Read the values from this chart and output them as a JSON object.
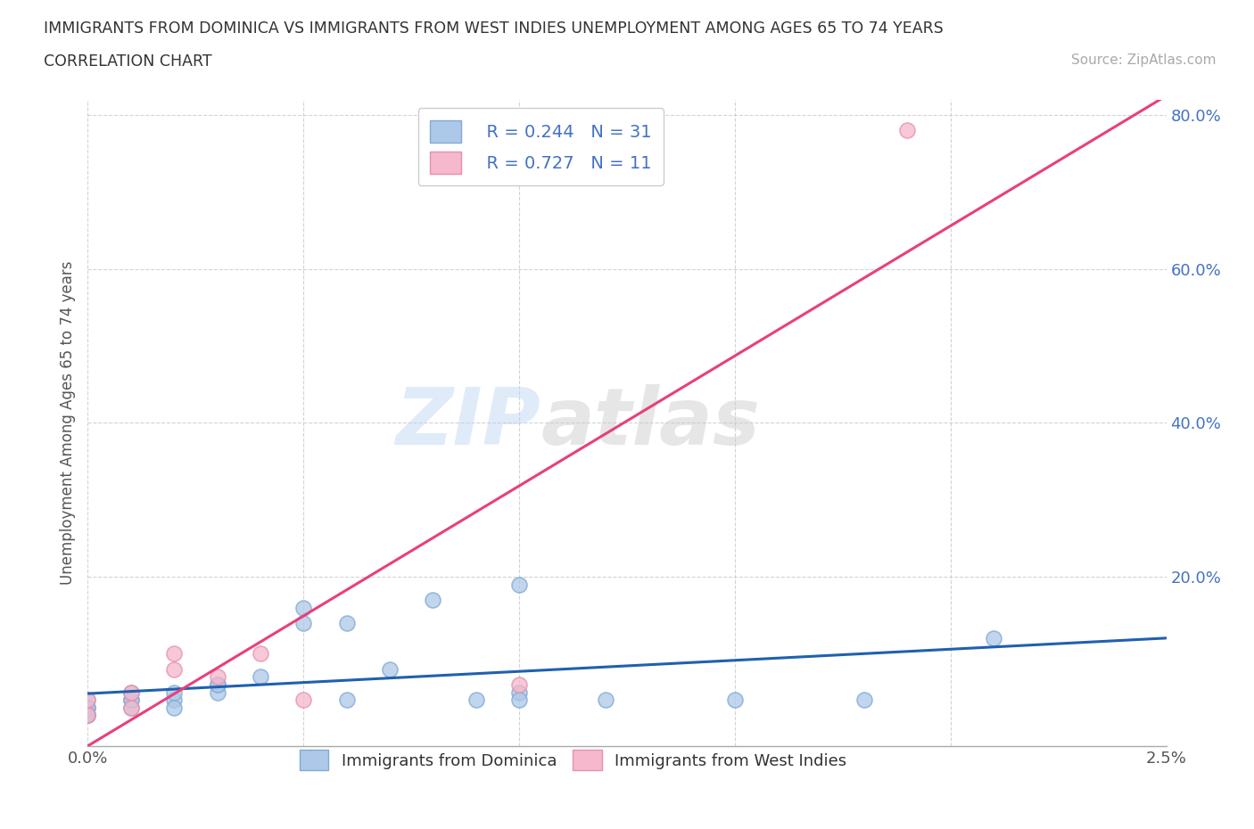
{
  "title_line1": "IMMIGRANTS FROM DOMINICA VS IMMIGRANTS FROM WEST INDIES UNEMPLOYMENT AMONG AGES 65 TO 74 YEARS",
  "title_line2": "CORRELATION CHART",
  "source_text": "Source: ZipAtlas.com",
  "ylabel": "Unemployment Among Ages 65 to 74 years",
  "xlim": [
    0.0,
    0.025
  ],
  "ylim": [
    -0.02,
    0.82
  ],
  "xticks": [
    0.0,
    0.005,
    0.01,
    0.015,
    0.02,
    0.025
  ],
  "xticklabels": [
    "0.0%",
    "",
    "",
    "",
    "",
    "2.5%"
  ],
  "yticks": [
    0.2,
    0.4,
    0.6,
    0.8
  ],
  "yticklabels": [
    "20.0%",
    "40.0%",
    "60.0%",
    "80.0%"
  ],
  "watermark_zip": "ZIP",
  "watermark_atlas": "atlas",
  "dominica_color": "#adc8e8",
  "dominica_edge": "#80aad4",
  "westindies_color": "#f5b8cc",
  "westindies_edge": "#e890aa",
  "dominica_line_color": "#2060b0",
  "westindies_line_color": "#e8407a",
  "R_dominica": 0.244,
  "N_dominica": 31,
  "R_westindies": 0.727,
  "N_westindies": 11,
  "dominica_x": [
    0.0,
    0.0,
    0.0,
    0.0,
    0.0,
    0.0,
    0.001,
    0.001,
    0.001,
    0.001,
    0.002,
    0.002,
    0.002,
    0.003,
    0.003,
    0.003,
    0.004,
    0.005,
    0.005,
    0.006,
    0.006,
    0.007,
    0.008,
    0.009,
    0.01,
    0.01,
    0.01,
    0.012,
    0.015,
    0.018,
    0.021
  ],
  "dominica_y": [
    0.02,
    0.03,
    0.04,
    0.02,
    0.03,
    0.02,
    0.04,
    0.03,
    0.04,
    0.05,
    0.04,
    0.05,
    0.03,
    0.06,
    0.05,
    0.06,
    0.07,
    0.16,
    0.14,
    0.14,
    0.04,
    0.08,
    0.17,
    0.04,
    0.19,
    0.05,
    0.04,
    0.04,
    0.04,
    0.04,
    0.12
  ],
  "westindies_x": [
    0.0,
    0.0,
    0.001,
    0.001,
    0.002,
    0.002,
    0.003,
    0.004,
    0.005,
    0.01,
    0.019
  ],
  "westindies_y": [
    0.02,
    0.04,
    0.03,
    0.05,
    0.08,
    0.1,
    0.07,
    0.1,
    0.04,
    0.06,
    0.78
  ],
  "background_color": "#ffffff",
  "grid_color": "#c8c8c8",
  "ytick_color": "#4472c4",
  "xtick_color": "#555555"
}
